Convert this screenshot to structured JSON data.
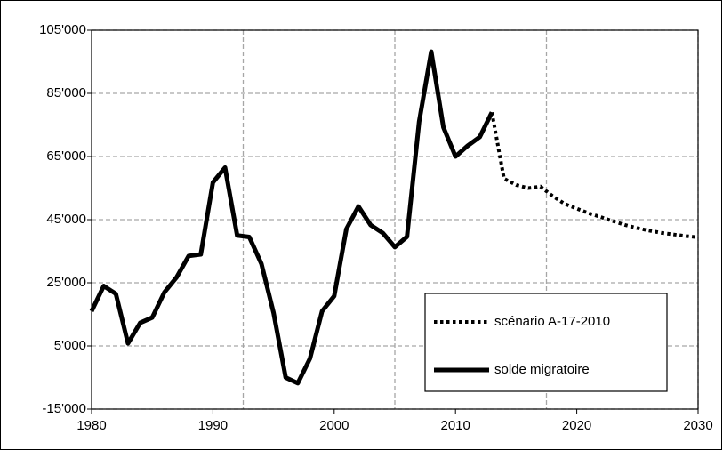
{
  "chart_data": {
    "type": "line",
    "x": [
      1980,
      1981,
      1982,
      1983,
      1984,
      1985,
      1986,
      1987,
      1988,
      1989,
      1990,
      1991,
      1992,
      1993,
      1994,
      1995,
      1996,
      1997,
      1998,
      1999,
      2000,
      2001,
      2002,
      2003,
      2004,
      2005,
      2006,
      2007,
      2008,
      2009,
      2010,
      2011,
      2012,
      2013,
      2014,
      2015,
      2016,
      2017,
      2018,
      2019,
      2020,
      2021,
      2022,
      2023,
      2024,
      2025,
      2026,
      2027,
      2028,
      2029,
      2030
    ],
    "series": [
      {
        "name": "scénario A-17-2010",
        "color": "#000000",
        "style": "dotted",
        "values": [
          null,
          null,
          null,
          null,
          null,
          null,
          null,
          null,
          null,
          null,
          null,
          null,
          null,
          null,
          null,
          null,
          null,
          null,
          null,
          null,
          null,
          null,
          null,
          null,
          null,
          null,
          null,
          null,
          null,
          null,
          null,
          null,
          null,
          79000,
          58000,
          56000,
          55000,
          55500,
          52500,
          50000,
          48500,
          47000,
          45800,
          44500,
          43300,
          42300,
          41500,
          40800,
          40300,
          39800,
          39400
        ]
      },
      {
        "name": "solde migratoire",
        "color": "#000000",
        "style": "solid",
        "values": [
          16000,
          24000,
          21500,
          5800,
          12300,
          14000,
          22000,
          26700,
          33500,
          34000,
          56800,
          61500,
          40000,
          39500,
          31000,
          15500,
          -5000,
          -6800,
          1000,
          16000,
          20800,
          42000,
          49200,
          43300,
          40800,
          36300,
          39600,
          76000,
          98200,
          74300,
          65000,
          68400,
          71200,
          79000,
          null,
          null,
          null,
          null,
          null,
          null,
          null,
          null,
          null,
          null,
          null,
          null,
          null,
          null,
          null,
          null,
          null
        ]
      }
    ],
    "xlim": [
      1980,
      2030
    ],
    "xticks": [
      1980,
      1990,
      2000,
      2010,
      2020,
      2030
    ],
    "xgrid": [
      1992.5,
      2005,
      2017.5,
      2030
    ],
    "ylim": [
      -15000,
      105000
    ],
    "yticks": [
      {
        "value": -15000,
        "label": "-15'000"
      },
      {
        "value": 5000,
        "label": "5'000"
      },
      {
        "value": 25000,
        "label": "25'000"
      },
      {
        "value": 45000,
        "label": "45'000"
      },
      {
        "value": 65000,
        "label": "65'000"
      },
      {
        "value": 85000,
        "label": "85'000"
      },
      {
        "value": 105000,
        "label": "105'000"
      }
    ],
    "grid": true
  }
}
